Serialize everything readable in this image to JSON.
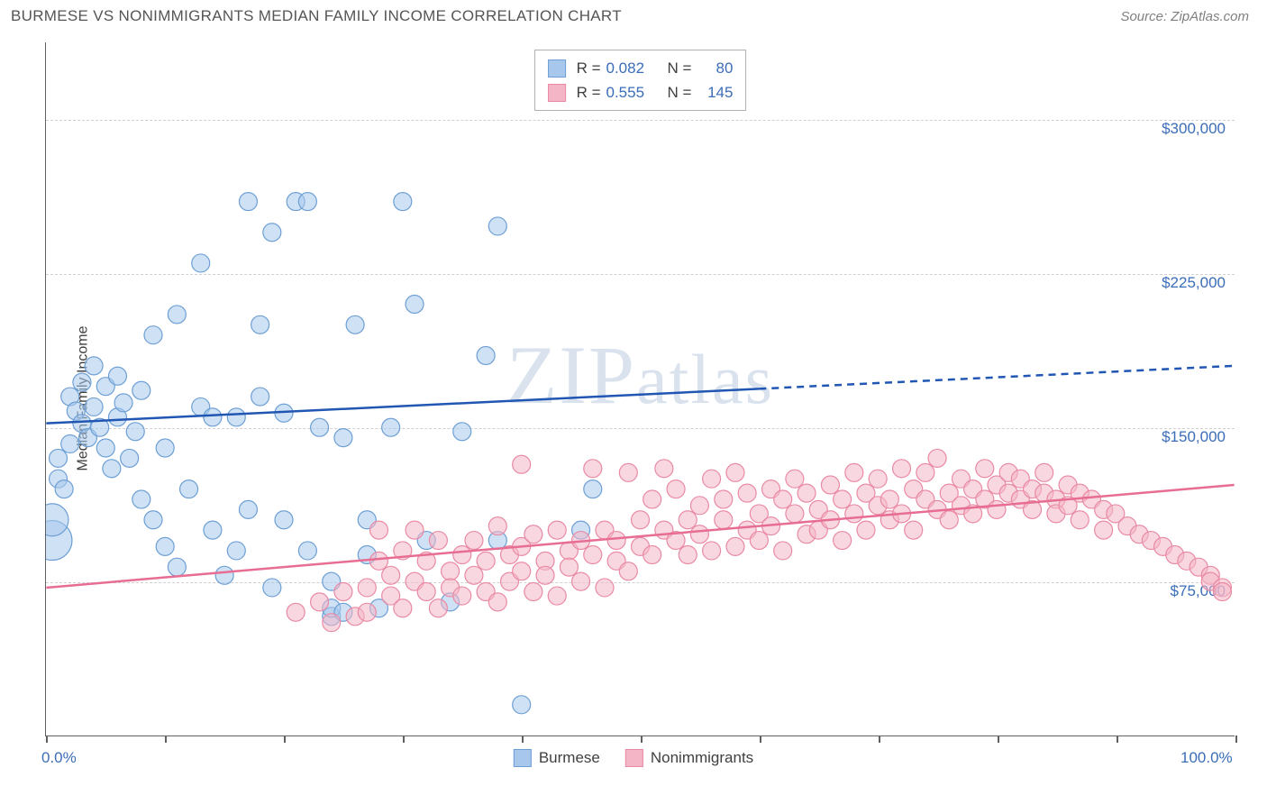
{
  "header": {
    "title": "BURMESE VS NONIMMIGRANTS MEDIAN FAMILY INCOME CORRELATION CHART",
    "source_label": "Source: ZipAtlas.com"
  },
  "watermark": "ZIPatlas",
  "chart": {
    "type": "scatter",
    "background_color": "#ffffff",
    "grid_color": "#d0d0d0",
    "axis_color": "#606060",
    "y_axis": {
      "title": "Median Family Income",
      "title_fontsize": 16,
      "title_color": "#404040",
      "min": 0,
      "max": 337500,
      "ticks": [
        {
          "value": 75000,
          "label": "$75,000"
        },
        {
          "value": 150000,
          "label": "$150,000"
        },
        {
          "value": 225000,
          "label": "$225,000"
        },
        {
          "value": 300000,
          "label": "$300,000"
        }
      ],
      "tick_color": "#3b6db8",
      "tick_fontsize": 17
    },
    "x_axis": {
      "min": 0,
      "max": 100,
      "ticks": [
        0,
        10,
        20,
        30,
        40,
        50,
        60,
        70,
        80,
        90,
        100
      ],
      "labeled_ticks": [
        {
          "value": 0,
          "label": "0.0%"
        },
        {
          "value": 100,
          "label": "100.0%"
        }
      ],
      "tick_color": "#3b6db8",
      "tick_fontsize": 17
    },
    "series": [
      {
        "name": "Burmese",
        "fill_color": "#a7c8ec",
        "fill_opacity": 0.55,
        "stroke_color": "#6d9fd4",
        "trend_color": "#2157b3",
        "trend_width": 2.5,
        "trend_solid_xmax": 60,
        "trend": {
          "y_at_x0": 152000,
          "y_at_x100": 180000
        },
        "R": "0.082",
        "N": "80",
        "marker_radius": 10,
        "points": [
          {
            "x": 0.5,
            "y": 95000,
            "r": 22
          },
          {
            "x": 0.5,
            "y": 105000,
            "r": 18
          },
          {
            "x": 1,
            "y": 125000
          },
          {
            "x": 1,
            "y": 135000
          },
          {
            "x": 1.5,
            "y": 120000
          },
          {
            "x": 2,
            "y": 142000
          },
          {
            "x": 2,
            "y": 165000
          },
          {
            "x": 2.5,
            "y": 158000
          },
          {
            "x": 3,
            "y": 152000
          },
          {
            "x": 3,
            "y": 172000
          },
          {
            "x": 3.5,
            "y": 145000
          },
          {
            "x": 4,
            "y": 180000
          },
          {
            "x": 4,
            "y": 160000
          },
          {
            "x": 4.5,
            "y": 150000
          },
          {
            "x": 5,
            "y": 170000
          },
          {
            "x": 5,
            "y": 140000
          },
          {
            "x": 5.5,
            "y": 130000
          },
          {
            "x": 6,
            "y": 155000
          },
          {
            "x": 6,
            "y": 175000
          },
          {
            "x": 6.5,
            "y": 162000
          },
          {
            "x": 7,
            "y": 135000
          },
          {
            "x": 7.5,
            "y": 148000
          },
          {
            "x": 8,
            "y": 115000
          },
          {
            "x": 8,
            "y": 168000
          },
          {
            "x": 9,
            "y": 105000
          },
          {
            "x": 9,
            "y": 195000
          },
          {
            "x": 10,
            "y": 140000
          },
          {
            "x": 10,
            "y": 92000
          },
          {
            "x": 11,
            "y": 205000
          },
          {
            "x": 11,
            "y": 82000
          },
          {
            "x": 12,
            "y": 120000
          },
          {
            "x": 13,
            "y": 230000
          },
          {
            "x": 13,
            "y": 160000
          },
          {
            "x": 14,
            "y": 100000
          },
          {
            "x": 14,
            "y": 155000
          },
          {
            "x": 15,
            "y": 78000
          },
          {
            "x": 16,
            "y": 155000
          },
          {
            "x": 16,
            "y": 90000
          },
          {
            "x": 17,
            "y": 260000
          },
          {
            "x": 17,
            "y": 110000
          },
          {
            "x": 18,
            "y": 165000
          },
          {
            "x": 18,
            "y": 200000
          },
          {
            "x": 19,
            "y": 245000
          },
          {
            "x": 19,
            "y": 72000
          },
          {
            "x": 20,
            "y": 157000
          },
          {
            "x": 20,
            "y": 105000
          },
          {
            "x": 21,
            "y": 260000
          },
          {
            "x": 22,
            "y": 90000
          },
          {
            "x": 22,
            "y": 260000
          },
          {
            "x": 23,
            "y": 150000
          },
          {
            "x": 24,
            "y": 75000
          },
          {
            "x": 24,
            "y": 58000
          },
          {
            "x": 24,
            "y": 62000
          },
          {
            "x": 25,
            "y": 145000
          },
          {
            "x": 25,
            "y": 60000
          },
          {
            "x": 26,
            "y": 200000
          },
          {
            "x": 27,
            "y": 105000
          },
          {
            "x": 27,
            "y": 88000
          },
          {
            "x": 28,
            "y": 62000
          },
          {
            "x": 29,
            "y": 150000
          },
          {
            "x": 30,
            "y": 260000
          },
          {
            "x": 31,
            "y": 210000
          },
          {
            "x": 32,
            "y": 95000
          },
          {
            "x": 34,
            "y": 65000
          },
          {
            "x": 35,
            "y": 148000
          },
          {
            "x": 37,
            "y": 185000
          },
          {
            "x": 38,
            "y": 95000
          },
          {
            "x": 38,
            "y": 248000
          },
          {
            "x": 40,
            "y": 15000
          },
          {
            "x": 45,
            "y": 100000
          },
          {
            "x": 46,
            "y": 120000
          }
        ]
      },
      {
        "name": "Nonimmigrants",
        "fill_color": "#f4b6c6",
        "fill_opacity": 0.55,
        "stroke_color": "#e98aa4",
        "trend_color": "#e76d93",
        "trend_width": 2.5,
        "trend_solid_xmax": 100,
        "trend": {
          "y_at_x0": 72000,
          "y_at_x100": 122000
        },
        "R": "0.555",
        "N": "145",
        "marker_radius": 10,
        "points": [
          {
            "x": 21,
            "y": 60000
          },
          {
            "x": 23,
            "y": 65000
          },
          {
            "x": 24,
            "y": 55000
          },
          {
            "x": 25,
            "y": 70000
          },
          {
            "x": 26,
            "y": 58000
          },
          {
            "x": 27,
            "y": 72000
          },
          {
            "x": 27,
            "y": 60000
          },
          {
            "x": 28,
            "y": 85000
          },
          {
            "x": 28,
            "y": 100000
          },
          {
            "x": 29,
            "y": 68000
          },
          {
            "x": 29,
            "y": 78000
          },
          {
            "x": 30,
            "y": 62000
          },
          {
            "x": 30,
            "y": 90000
          },
          {
            "x": 31,
            "y": 75000
          },
          {
            "x": 31,
            "y": 100000
          },
          {
            "x": 32,
            "y": 70000
          },
          {
            "x": 32,
            "y": 85000
          },
          {
            "x": 33,
            "y": 95000
          },
          {
            "x": 33,
            "y": 62000
          },
          {
            "x": 34,
            "y": 80000
          },
          {
            "x": 34,
            "y": 72000
          },
          {
            "x": 35,
            "y": 88000
          },
          {
            "x": 35,
            "y": 68000
          },
          {
            "x": 36,
            "y": 78000
          },
          {
            "x": 36,
            "y": 95000
          },
          {
            "x": 37,
            "y": 70000
          },
          {
            "x": 37,
            "y": 85000
          },
          {
            "x": 38,
            "y": 102000
          },
          {
            "x": 38,
            "y": 65000
          },
          {
            "x": 39,
            "y": 88000
          },
          {
            "x": 39,
            "y": 75000
          },
          {
            "x": 40,
            "y": 92000
          },
          {
            "x": 40,
            "y": 80000
          },
          {
            "x": 40,
            "y": 132000
          },
          {
            "x": 41,
            "y": 70000
          },
          {
            "x": 41,
            "y": 98000
          },
          {
            "x": 42,
            "y": 85000
          },
          {
            "x": 42,
            "y": 78000
          },
          {
            "x": 43,
            "y": 100000
          },
          {
            "x": 43,
            "y": 68000
          },
          {
            "x": 44,
            "y": 90000
          },
          {
            "x": 44,
            "y": 82000
          },
          {
            "x": 45,
            "y": 75000
          },
          {
            "x": 45,
            "y": 95000
          },
          {
            "x": 46,
            "y": 130000
          },
          {
            "x": 46,
            "y": 88000
          },
          {
            "x": 47,
            "y": 72000
          },
          {
            "x": 47,
            "y": 100000
          },
          {
            "x": 48,
            "y": 85000
          },
          {
            "x": 48,
            "y": 95000
          },
          {
            "x": 49,
            "y": 128000
          },
          {
            "x": 49,
            "y": 80000
          },
          {
            "x": 50,
            "y": 105000
          },
          {
            "x": 50,
            "y": 92000
          },
          {
            "x": 51,
            "y": 115000
          },
          {
            "x": 51,
            "y": 88000
          },
          {
            "x": 52,
            "y": 130000
          },
          {
            "x": 52,
            "y": 100000
          },
          {
            "x": 53,
            "y": 95000
          },
          {
            "x": 53,
            "y": 120000
          },
          {
            "x": 54,
            "y": 105000
          },
          {
            "x": 54,
            "y": 88000
          },
          {
            "x": 55,
            "y": 112000
          },
          {
            "x": 55,
            "y": 98000
          },
          {
            "x": 56,
            "y": 125000
          },
          {
            "x": 56,
            "y": 90000
          },
          {
            "x": 57,
            "y": 105000
          },
          {
            "x": 57,
            "y": 115000
          },
          {
            "x": 58,
            "y": 92000
          },
          {
            "x": 58,
            "y": 128000
          },
          {
            "x": 59,
            "y": 100000
          },
          {
            "x": 59,
            "y": 118000
          },
          {
            "x": 60,
            "y": 108000
          },
          {
            "x": 60,
            "y": 95000
          },
          {
            "x": 61,
            "y": 120000
          },
          {
            "x": 61,
            "y": 102000
          },
          {
            "x": 62,
            "y": 115000
          },
          {
            "x": 62,
            "y": 90000
          },
          {
            "x": 63,
            "y": 108000
          },
          {
            "x": 63,
            "y": 125000
          },
          {
            "x": 64,
            "y": 98000
          },
          {
            "x": 64,
            "y": 118000
          },
          {
            "x": 65,
            "y": 110000
          },
          {
            "x": 65,
            "y": 100000
          },
          {
            "x": 66,
            "y": 122000
          },
          {
            "x": 66,
            "y": 105000
          },
          {
            "x": 67,
            "y": 115000
          },
          {
            "x": 67,
            "y": 95000
          },
          {
            "x": 68,
            "y": 128000
          },
          {
            "x": 68,
            "y": 108000
          },
          {
            "x": 69,
            "y": 118000
          },
          {
            "x": 69,
            "y": 100000
          },
          {
            "x": 70,
            "y": 112000
          },
          {
            "x": 70,
            "y": 125000
          },
          {
            "x": 71,
            "y": 105000
          },
          {
            "x": 71,
            "y": 115000
          },
          {
            "x": 72,
            "y": 130000
          },
          {
            "x": 72,
            "y": 108000
          },
          {
            "x": 73,
            "y": 120000
          },
          {
            "x": 73,
            "y": 100000
          },
          {
            "x": 74,
            "y": 115000
          },
          {
            "x": 74,
            "y": 128000
          },
          {
            "x": 75,
            "y": 110000
          },
          {
            "x": 75,
            "y": 135000
          },
          {
            "x": 76,
            "y": 118000
          },
          {
            "x": 76,
            "y": 105000
          },
          {
            "x": 77,
            "y": 125000
          },
          {
            "x": 77,
            "y": 112000
          },
          {
            "x": 78,
            "y": 120000
          },
          {
            "x": 78,
            "y": 108000
          },
          {
            "x": 79,
            "y": 130000
          },
          {
            "x": 79,
            "y": 115000
          },
          {
            "x": 80,
            "y": 122000
          },
          {
            "x": 80,
            "y": 110000
          },
          {
            "x": 81,
            "y": 128000
          },
          {
            "x": 81,
            "y": 118000
          },
          {
            "x": 82,
            "y": 115000
          },
          {
            "x": 82,
            "y": 125000
          },
          {
            "x": 83,
            "y": 120000
          },
          {
            "x": 83,
            "y": 110000
          },
          {
            "x": 84,
            "y": 128000
          },
          {
            "x": 84,
            "y": 118000
          },
          {
            "x": 85,
            "y": 115000
          },
          {
            "x": 85,
            "y": 108000
          },
          {
            "x": 86,
            "y": 122000
          },
          {
            "x": 86,
            "y": 112000
          },
          {
            "x": 87,
            "y": 118000
          },
          {
            "x": 87,
            "y": 105000
          },
          {
            "x": 88,
            "y": 115000
          },
          {
            "x": 89,
            "y": 110000
          },
          {
            "x": 89,
            "y": 100000
          },
          {
            "x": 90,
            "y": 108000
          },
          {
            "x": 91,
            "y": 102000
          },
          {
            "x": 92,
            "y": 98000
          },
          {
            "x": 93,
            "y": 95000
          },
          {
            "x": 94,
            "y": 92000
          },
          {
            "x": 95,
            "y": 88000
          },
          {
            "x": 96,
            "y": 85000
          },
          {
            "x": 97,
            "y": 82000
          },
          {
            "x": 98,
            "y": 78000
          },
          {
            "x": 98,
            "y": 75000
          },
          {
            "x": 99,
            "y": 72000
          },
          {
            "x": 99,
            "y": 70000
          }
        ]
      }
    ],
    "legend_bottom": [
      {
        "label": "Burmese",
        "swatch_fill": "#a7c8ec",
        "swatch_border": "#6d9fd4"
      },
      {
        "label": "Nonimmigrants",
        "swatch_fill": "#f4b6c6",
        "swatch_border": "#e98aa4"
      }
    ]
  }
}
